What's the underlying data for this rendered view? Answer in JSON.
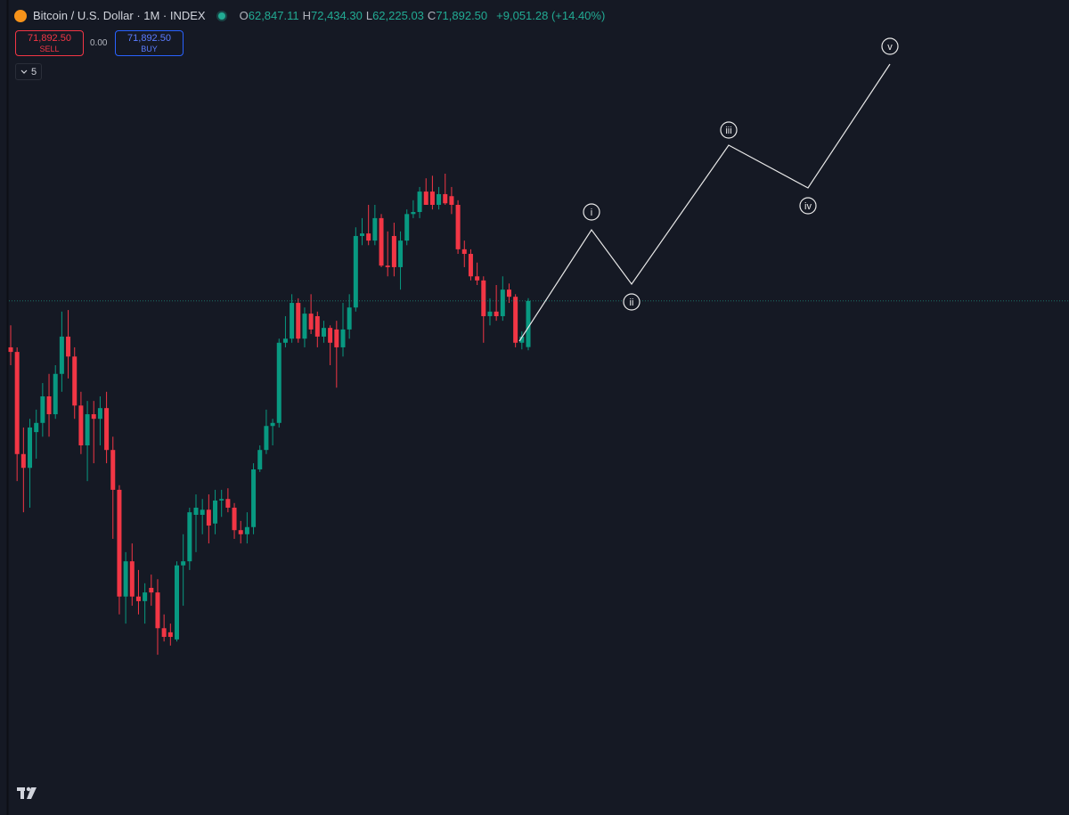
{
  "header": {
    "symbol": "Bitcoin / U.S. Dollar · 1M · INDEX",
    "ohlc": [
      {
        "key": "O",
        "value": "62,847.11"
      },
      {
        "key": "H",
        "value": "72,434.30"
      },
      {
        "key": "L",
        "value": "62,225.03"
      },
      {
        "key": "C",
        "value": "71,892.50"
      }
    ],
    "change": "+9,051.28 (+14.40%)"
  },
  "trade": {
    "sell_price": "71,892.50",
    "sell_label": "SELL",
    "spread": "0.00",
    "buy_price": "71,892.50",
    "buy_label": "BUY"
  },
  "indicators_count": "5",
  "waves": [
    "i",
    "ii",
    "iii",
    "iv",
    "v"
  ],
  "chart_data": {
    "type": "candlestick",
    "ylim": [
      0,
      120000
    ],
    "up_color": "#089981",
    "down_color": "#f23645",
    "candles": [
      [
        62800,
        67100,
        59300,
        61900
      ],
      [
        61900,
        62800,
        36600,
        41900
      ],
      [
        41900,
        47100,
        30500,
        39200
      ],
      [
        39200,
        48800,
        31400,
        47100
      ],
      [
        46200,
        50600,
        41000,
        48000
      ],
      [
        48000,
        55800,
        45300,
        53200
      ],
      [
        53200,
        57600,
        45300,
        49700
      ],
      [
        49700,
        59300,
        48800,
        57600
      ],
      [
        57600,
        69800,
        54100,
        64900
      ],
      [
        64900,
        70100,
        56700,
        61000
      ],
      [
        61000,
        62800,
        48800,
        51400
      ],
      [
        51400,
        54100,
        41900,
        43600
      ],
      [
        43600,
        52300,
        36600,
        49700
      ],
      [
        49700,
        52300,
        40100,
        48800
      ],
      [
        48800,
        53200,
        43600,
        50900
      ],
      [
        50900,
        54100,
        40100,
        42700
      ],
      [
        42700,
        45300,
        25300,
        34900
      ],
      [
        34900,
        35800,
        10500,
        14000
      ],
      [
        14000,
        22700,
        8700,
        20900
      ],
      [
        20900,
        24400,
        12200,
        14000
      ],
      [
        14000,
        19200,
        10500,
        13100
      ],
      [
        13100,
        16600,
        8700,
        14800
      ],
      [
        15700,
        18300,
        12200,
        14800
      ],
      [
        14800,
        17400,
        2600,
        7800
      ],
      [
        7800,
        10500,
        5200,
        6100
      ],
      [
        7000,
        8700,
        4400,
        6100
      ],
      [
        5600,
        20900,
        5200,
        20100
      ],
      [
        20100,
        26200,
        12200,
        20900
      ],
      [
        20900,
        31400,
        19200,
        30500
      ],
      [
        30000,
        34000,
        22700,
        31400
      ],
      [
        30000,
        33100,
        26200,
        31000
      ],
      [
        31000,
        34000,
        24400,
        27900
      ],
      [
        28300,
        34900,
        26200,
        32800
      ],
      [
        32800,
        34900,
        29600,
        33100
      ],
      [
        33100,
        35200,
        30500,
        31400
      ],
      [
        31400,
        32300,
        25300,
        27000
      ],
      [
        27000,
        28800,
        24400,
        26200
      ],
      [
        26200,
        30500,
        24400,
        27600
      ],
      [
        27600,
        40100,
        26200,
        38900
      ],
      [
        38900,
        43600,
        38400,
        42700
      ],
      [
        42700,
        50600,
        41900,
        47400
      ],
      [
        47400,
        48800,
        43600,
        48000
      ],
      [
        48000,
        64500,
        47100,
        63700
      ],
      [
        63700,
        68900,
        62800,
        64500
      ],
      [
        64500,
        73200,
        63700,
        71500
      ],
      [
        71500,
        72400,
        63700,
        64500
      ],
      [
        64500,
        70600,
        62800,
        69400
      ],
      [
        69400,
        73200,
        65400,
        66300
      ],
      [
        68900,
        69800,
        62800,
        64900
      ],
      [
        64900,
        68000,
        63700,
        66600
      ],
      [
        66600,
        67100,
        59300,
        63700
      ],
      [
        66300,
        68000,
        54900,
        62800
      ],
      [
        62800,
        71500,
        61000,
        66300
      ],
      [
        66300,
        73200,
        64500,
        70600
      ],
      [
        70600,
        86300,
        69800,
        84600
      ],
      [
        84600,
        88100,
        82800,
        85100
      ],
      [
        85100,
        90700,
        82800,
        83700
      ],
      [
        83700,
        90700,
        82800,
        88100
      ],
      [
        88100,
        88900,
        78500,
        78800
      ],
      [
        78800,
        85500,
        76700,
        78500
      ],
      [
        84600,
        87200,
        76700,
        78500
      ],
      [
        78500,
        85500,
        74100,
        83700
      ],
      [
        83700,
        89800,
        82800,
        88900
      ],
      [
        88900,
        91600,
        88100,
        89300
      ],
      [
        89300,
        94200,
        88100,
        93300
      ],
      [
        93300,
        95900,
        90700,
        90700
      ],
      [
        93300,
        96400,
        89800,
        90700
      ],
      [
        90700,
        94200,
        89800,
        92800
      ],
      [
        92800,
        96800,
        90700,
        91000
      ],
      [
        92400,
        94200,
        88900,
        90700
      ],
      [
        90700,
        91600,
        81100,
        82000
      ],
      [
        82000,
        83700,
        78500,
        81100
      ],
      [
        81100,
        82000,
        75900,
        76700
      ],
      [
        76700,
        79400,
        75000,
        75900
      ],
      [
        75900,
        76700,
        63700,
        68900
      ],
      [
        68900,
        72400,
        67100,
        69800
      ],
      [
        69800,
        75000,
        68000,
        68900
      ],
      [
        68900,
        76700,
        68000,
        74100
      ],
      [
        74100,
        75300,
        71500,
        72700
      ],
      [
        72700,
        73200,
        62800,
        63700
      ],
      [
        63700,
        65900,
        62400,
        64900
      ],
      [
        62847.11,
        72434.3,
        62225.03,
        71892.5
      ]
    ]
  }
}
